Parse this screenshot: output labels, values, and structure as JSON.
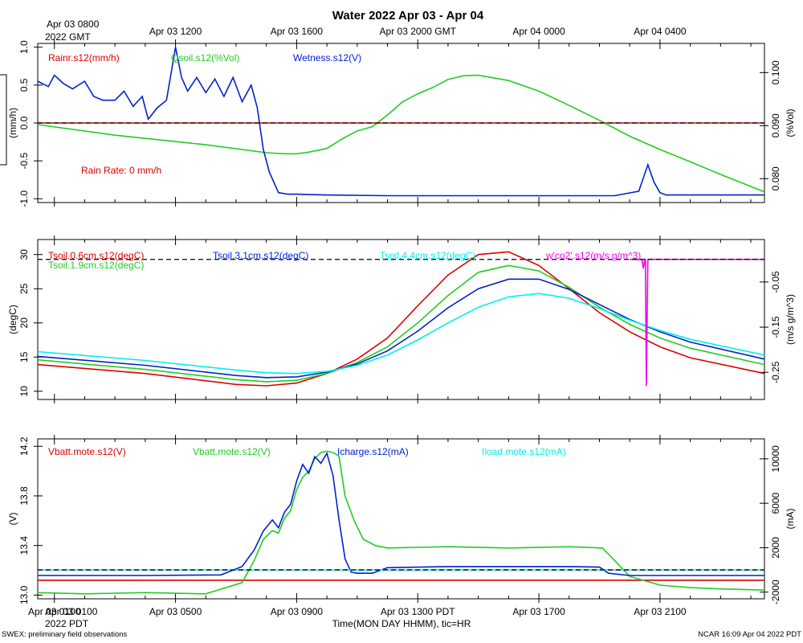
{
  "title": "Water 2022 Apr 03 - Apr 04",
  "footer": {
    "left": "SWEX: preliminary field observations",
    "right": "NCAR 16:09 Apr 04 2022 PDT",
    "xlabel": "Time(MON DAY HHMM), tic=HR",
    "top_label_line1": "Apr 03 0800",
    "top_label_line2": "2022 GMT",
    "bottom_label_line1": "Apr 03 0100",
    "bottom_label_line2": "2022 PDT"
  },
  "colors": {
    "red": "#dd0000",
    "green": "#22cc22",
    "blue": "#0022cc",
    "cyan": "#00eeee",
    "magenta": "#ee00ee",
    "black": "#000000"
  },
  "chart_data": [
    {
      "type": "line",
      "panel": "rain-soil-moisture",
      "x_unit": "hours since Apr 03 0000 PDT",
      "xlim": [
        0.45,
        24.45
      ],
      "top_ticks": [
        {
          "x": 5,
          "label": "Apr 03 1200"
        },
        {
          "x": 9,
          "label": "Apr 03 1600"
        },
        {
          "x": 13,
          "label": "Apr 03 2000 GMT"
        },
        {
          "x": 17,
          "label": "Apr 04 0000"
        },
        {
          "x": 21,
          "label": "Apr 04 0400"
        }
      ],
      "left_axis": {
        "label": "(mm/h)",
        "ylim": [
          -1.05,
          1.05
        ],
        "ticks": [
          -1.0,
          -0.5,
          0.0,
          0.5,
          1.0
        ],
        "tick_labels": [
          "-1.0",
          "-0.5",
          "0.0",
          "0.5",
          "1.0"
        ]
      },
      "right_axis": {
        "label": "(%Vol)",
        "ylim": [
          0.0755,
          0.1055
        ],
        "ticks": [
          0.08,
          0.09,
          0.1
        ],
        "tick_labels": [
          "0.080",
          "0.090",
          "0.100"
        ]
      },
      "legend": [
        "Rainr.s12(mm/h)",
        "Qsoil.s12(%Vol)",
        "Wetness.s12(V)"
      ],
      "annotation": "Rain Rate: 0 mm/h",
      "series": [
        {
          "name": "Rainr.s12(mm/h)",
          "color": "red",
          "axis": "left",
          "x": [
            0.45,
            24.45
          ],
          "values": [
            0.0,
            0.0
          ]
        },
        {
          "name": "Qsoil.s12(%Vol)",
          "color": "green",
          "axis": "right",
          "x": [
            0.45,
            3,
            6,
            8,
            8.6,
            9,
            9.4,
            10,
            10.5,
            11,
            11.5,
            12,
            12.5,
            13,
            13.5,
            14,
            14.5,
            15,
            16,
            17,
            18,
            19,
            20,
            21,
            22,
            23,
            24.45
          ],
          "values": [
            0.0902,
            0.0882,
            0.0864,
            0.0849,
            0.0847,
            0.0847,
            0.085,
            0.0857,
            0.0875,
            0.089,
            0.0898,
            0.092,
            0.0945,
            0.096,
            0.0972,
            0.0987,
            0.0994,
            0.0995,
            0.0985,
            0.0965,
            0.0938,
            0.091,
            0.088,
            0.0855,
            0.0832,
            0.0808,
            0.0775
          ]
        },
        {
          "name": "Wetness.s12(V)",
          "color": "blue",
          "axis": "left",
          "x": [
            0.45,
            0.8,
            1.0,
            1.3,
            1.6,
            2.0,
            2.3,
            2.6,
            3.0,
            3.3,
            3.6,
            3.9,
            4.1,
            4.4,
            4.7,
            5.0,
            5.2,
            5.4,
            5.7,
            6.0,
            6.3,
            6.6,
            6.9,
            7.2,
            7.5,
            7.7,
            7.9,
            8.1,
            8.4,
            8.7,
            9.0,
            10,
            12,
            14,
            16,
            18,
            19.5,
            20.3,
            20.6,
            20.8,
            21.0,
            21.2,
            22,
            24.45
          ],
          "values": [
            0.55,
            0.48,
            0.63,
            0.52,
            0.45,
            0.55,
            0.35,
            0.3,
            0.3,
            0.42,
            0.22,
            0.35,
            0.05,
            0.2,
            0.3,
            1.0,
            0.6,
            0.42,
            0.6,
            0.4,
            0.58,
            0.35,
            0.6,
            0.28,
            0.5,
            0.2,
            -0.35,
            -0.65,
            -0.92,
            -0.94,
            -0.94,
            -0.95,
            -0.96,
            -0.96,
            -0.96,
            -0.96,
            -0.96,
            -0.9,
            -0.55,
            -0.78,
            -0.92,
            -0.95,
            -0.95,
            -0.95
          ]
        }
      ]
    },
    {
      "type": "line",
      "panel": "soil-temperature",
      "xlim": [
        0.45,
        24.45
      ],
      "left_axis": {
        "label": "(degC)",
        "ylim": [
          8.8,
          32.2
        ],
        "ticks": [
          10,
          15,
          20,
          25,
          30
        ],
        "tick_labels": [
          "10",
          "15",
          "20",
          "25",
          "30"
        ]
      },
      "right_axis": {
        "label": "(m/s g/m^3)",
        "ylim": [
          -0.31,
          0.044
        ],
        "ticks": [
          -0.25,
          -0.15,
          -0.05
        ],
        "tick_labels": [
          "-0.25",
          "-0.15",
          "-0.05"
        ]
      },
      "legend": [
        "Tsoil.0.6cm.s12(degC)",
        "Tsoil.1.9cm.s12(degC)",
        "Tsoil.3.1cm.s12(degC)",
        "Tsoil.4.4cm.s12(degC)",
        "w'co2'.s12(m/s g/m^3)"
      ],
      "series": [
        {
          "name": "Tsoil.0.6cm.s12(degC)",
          "color": "red",
          "axis": "left",
          "x": [
            0.45,
            4,
            7,
            8,
            9,
            10,
            11,
            12,
            13,
            14,
            15,
            16,
            17,
            18,
            19,
            20,
            21,
            22,
            24.45
          ],
          "values": [
            13.9,
            12.6,
            11.0,
            10.8,
            11.2,
            12.6,
            14.7,
            17.8,
            22.5,
            27.0,
            30.0,
            30.4,
            28.4,
            25.0,
            21.5,
            18.7,
            16.5,
            14.9,
            12.6
          ]
        },
        {
          "name": "Tsoil.1.9cm.s12(degC)",
          "color": "green",
          "axis": "left",
          "x": [
            0.45,
            4,
            7,
            8,
            9,
            10,
            11,
            12,
            13,
            14,
            15,
            16,
            17,
            18,
            19,
            20,
            21,
            22,
            24.45
          ],
          "values": [
            14.6,
            13.2,
            11.7,
            11.4,
            11.6,
            12.6,
            14.2,
            16.5,
            20.0,
            24.0,
            27.4,
            28.4,
            27.6,
            25.2,
            22.3,
            19.8,
            17.8,
            16.3,
            13.9
          ]
        },
        {
          "name": "Tsoil.3.1cm.s12(degC)",
          "color": "blue",
          "axis": "left",
          "x": [
            0.45,
            4,
            7,
            8,
            9,
            10,
            11,
            12,
            13,
            14,
            15,
            16,
            17,
            18,
            19,
            20,
            21,
            22,
            24.45
          ],
          "values": [
            15.1,
            13.8,
            12.3,
            12.0,
            12.1,
            12.8,
            14.0,
            15.9,
            18.8,
            22.2,
            25.0,
            26.4,
            26.4,
            24.9,
            22.7,
            20.5,
            18.7,
            17.2,
            14.7
          ]
        },
        {
          "name": "Tsoil.4.4cm.s12(degC)",
          "color": "cyan",
          "axis": "left",
          "x": [
            0.45,
            4,
            7,
            8,
            9,
            10,
            11,
            12,
            13,
            14,
            15,
            16,
            17,
            18,
            19,
            20,
            21,
            22,
            24.45
          ],
          "values": [
            15.8,
            14.5,
            13.1,
            12.7,
            12.6,
            12.9,
            13.8,
            15.3,
            17.5,
            20.0,
            22.3,
            23.8,
            24.3,
            23.6,
            22.1,
            20.4,
            18.9,
            17.6,
            15.3
          ]
        },
        {
          "name": "w'co2'.s12(m/s g/m^3)",
          "color": "magenta",
          "axis": "right",
          "x": [
            20.0,
            20.4,
            20.45,
            20.5,
            20.52,
            20.55,
            20.6,
            21.0,
            24.45
          ],
          "values": [
            0.0,
            0.0,
            -0.02,
            0.0,
            0.0,
            -0.28,
            0.0,
            0.0,
            0.0
          ]
        }
      ]
    },
    {
      "type": "line",
      "panel": "battery-power",
      "xlim": [
        0.45,
        24.45
      ],
      "bottom_ticks": [
        {
          "x": 1,
          "label": "Apr 03 0100"
        },
        {
          "x": 5,
          "label": "Apr 03 0500"
        },
        {
          "x": 9,
          "label": "Apr 03 0900"
        },
        {
          "x": 13,
          "label": "Apr 03 1300 PDT"
        },
        {
          "x": 17,
          "label": "Apr 03 1700"
        },
        {
          "x": 21,
          "label": "Apr 03 2100"
        }
      ],
      "left_axis": {
        "label": "(V)",
        "ylim": [
          12.97,
          14.26
        ],
        "ticks": [
          13.0,
          13.4,
          13.8,
          14.2
        ],
        "tick_labels": [
          "13.0",
          "13.4",
          "13.8",
          "14.2"
        ]
      },
      "right_axis": {
        "label": "(mA)",
        "ylim": [
          -2600,
          11800
        ],
        "ticks": [
          -2000,
          2000,
          6000,
          10000
        ],
        "tick_labels": [
          "-2000",
          "2000",
          "6000",
          "10000"
        ]
      },
      "legend": [
        "Vbatt.mote.s12(V)",
        "Vbatt.mote.s12(V)",
        "Icharge.s12(mA)",
        "Iload.mote.s12(mA)"
      ],
      "series": [
        {
          "name": "Vbatt.mote.s12(V)",
          "color": "red",
          "axis": "left",
          "x": [
            0.45,
            24.45
          ],
          "values": [
            13.12,
            13.12
          ]
        },
        {
          "name": "Vbatt.mote.s12(V)",
          "color": "green",
          "axis": "left",
          "x": [
            0.45,
            2,
            4,
            6,
            7.2,
            7.6,
            7.9,
            8.2,
            8.4,
            8.6,
            8.8,
            9.0,
            9.2,
            9.4,
            9.6,
            9.8,
            10.0,
            10.2,
            10.4,
            10.6,
            10.9,
            11.2,
            11.6,
            12,
            14,
            16,
            18,
            19.1,
            19.5,
            20,
            21,
            22,
            23,
            24.45
          ],
          "values": [
            13.02,
            13.01,
            13.02,
            13.01,
            13.1,
            13.28,
            13.45,
            13.52,
            13.5,
            13.62,
            13.68,
            13.85,
            13.95,
            14.0,
            14.1,
            14.15,
            14.16,
            14.15,
            14.12,
            13.8,
            13.6,
            13.45,
            13.4,
            13.38,
            13.39,
            13.38,
            13.39,
            13.38,
            13.28,
            13.15,
            13.08,
            13.06,
            13.05,
            13.04
          ]
        },
        {
          "name": "Icharge.s12(mA)",
          "color": "blue",
          "axis": "right",
          "x": [
            0.45,
            4,
            6.5,
            7.2,
            7.6,
            7.9,
            8.2,
            8.4,
            8.6,
            8.8,
            9.0,
            9.2,
            9.4,
            9.6,
            9.8,
            10.0,
            10.2,
            10.4,
            10.6,
            10.8,
            11.0,
            11.5,
            12,
            14,
            16,
            18,
            19.0,
            19.3,
            20,
            22,
            24.45
          ],
          "values": [
            -500,
            -500,
            -450,
            300,
            1800,
            3500,
            4500,
            3800,
            5200,
            5900,
            8000,
            9500,
            8700,
            10200,
            9600,
            10500,
            8500,
            4500,
            1000,
            -200,
            -300,
            -300,
            200,
            300,
            300,
            300,
            250,
            -300,
            -500,
            -500,
            -500
          ]
        },
        {
          "name": "Iload.mote.s12(mA)",
          "color": "cyan",
          "axis": "right",
          "x": [
            0.45,
            24.45
          ],
          "values": [
            0,
            0
          ]
        }
      ]
    }
  ]
}
